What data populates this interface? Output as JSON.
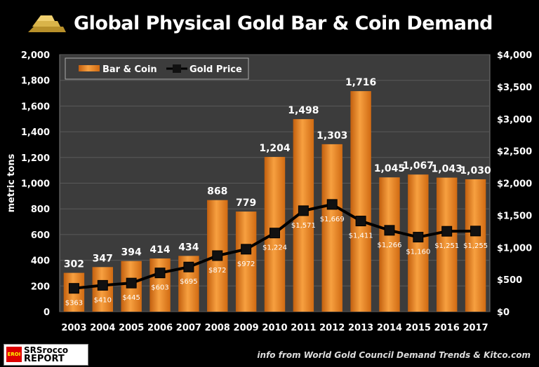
{
  "title": "Global Physical Gold Bar & Coin Demand",
  "source": "info from World Gold Council Demand Trends & Kitco.com",
  "logo": {
    "badge": "EROI",
    "line1": "SRSrocco",
    "line2": "REPORT"
  },
  "chart_data": {
    "type": "bar+line",
    "title": "Global Physical Gold Bar & Coin Demand",
    "ylabel": "metric tons",
    "ylim": [
      0,
      2000
    ],
    "y2lim": [
      0,
      4000
    ],
    "yticks": [
      "0",
      "200",
      "400",
      "600",
      "800",
      "1,000",
      "1,200",
      "1,400",
      "1,600",
      "1,800",
      "2,000"
    ],
    "y2ticks": [
      "$0",
      "$500",
      "$1,000",
      "$1,500",
      "$2,000",
      "$2,500",
      "$3,000",
      "$3,500",
      "$4,000"
    ],
    "grid": true,
    "legend_position": "top-left",
    "categories": [
      "2003",
      "2004",
      "2005",
      "2006",
      "2007",
      "2008",
      "2009",
      "2010",
      "2011",
      "2012",
      "2013",
      "2014",
      "2015",
      "2016",
      "2017"
    ],
    "series": [
      {
        "name": "Bar & Coin",
        "axis": "left",
        "type": "bar",
        "color": "#f08a24",
        "values": [
          302,
          347,
          394,
          414,
          434,
          868,
          779,
          1204,
          1498,
          1303,
          1716,
          1045,
          1067,
          1043,
          1030
        ],
        "labels": [
          "302",
          "347",
          "394",
          "414",
          "434",
          "868",
          "779",
          "1,204",
          "1,498",
          "1,303",
          "1,716",
          "1,045",
          "1,067",
          "1,043",
          "1,030"
        ]
      },
      {
        "name": "Gold Price",
        "axis": "right",
        "type": "line",
        "color": "#000000",
        "values": [
          363,
          410,
          445,
          603,
          695,
          872,
          972,
          1224,
          1571,
          1669,
          1411,
          1266,
          1160,
          1251,
          1255
        ],
        "labels": [
          "$363",
          "$410",
          "$445",
          "$603",
          "$695",
          "$872",
          "$972",
          "$1,224",
          "$1,571",
          "$1,669",
          "$1,411",
          "$1,266",
          "$1,160",
          "$1,251",
          "$1,255"
        ]
      }
    ]
  }
}
